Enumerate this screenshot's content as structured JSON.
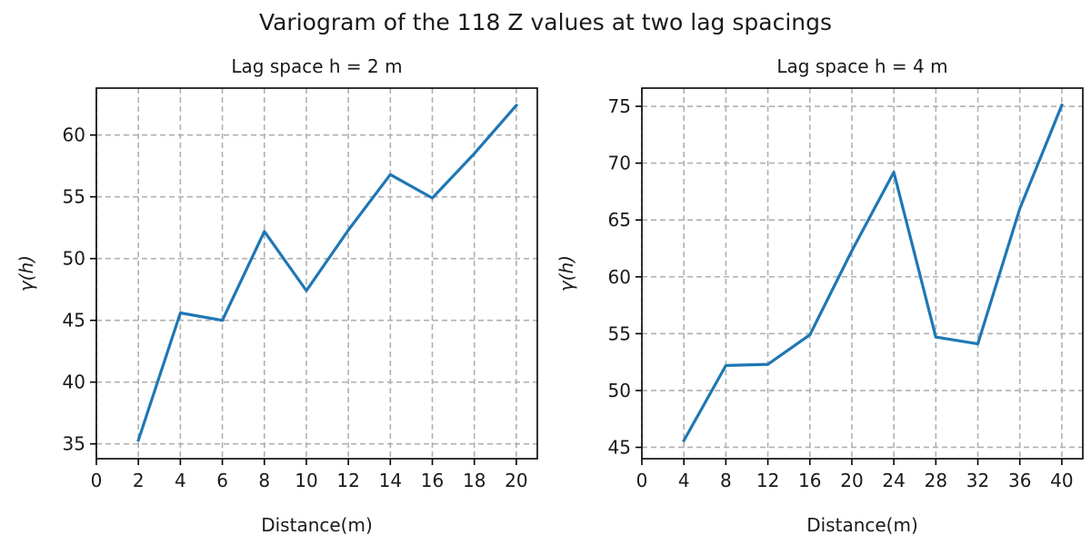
{
  "figure": {
    "title": "Variogram of the 118 Z values at two lag spacings"
  },
  "chart_data": [
    {
      "type": "line",
      "title": "Lag space h = 2 m",
      "xlabel": "Distance(m)",
      "ylabel": "γ(h)",
      "xlim": [
        0,
        21
      ],
      "ylim": [
        33.8,
        63.8
      ],
      "xticks": [
        0,
        2,
        4,
        6,
        8,
        10,
        12,
        14,
        16,
        18,
        20
      ],
      "yticks": [
        35,
        40,
        45,
        50,
        55,
        60
      ],
      "grid": true,
      "color": "#1f77b4",
      "series": [
        {
          "x": [
            2,
            4,
            6,
            8,
            10,
            12,
            14,
            16,
            18,
            20
          ],
          "y": [
            35.3,
            45.6,
            45.0,
            52.2,
            47.4,
            52.3,
            56.8,
            54.9,
            58.5,
            62.4
          ]
        }
      ]
    },
    {
      "type": "line",
      "title": "Lag space h = 4 m",
      "xlabel": "Distance(m)",
      "ylabel": "γ(h)",
      "xlim": [
        0,
        42
      ],
      "ylim": [
        44,
        76.6
      ],
      "xticks": [
        0,
        4,
        8,
        12,
        16,
        20,
        24,
        28,
        32,
        36,
        40
      ],
      "yticks": [
        45,
        50,
        55,
        60,
        65,
        70,
        75
      ],
      "grid": true,
      "color": "#1f77b4",
      "series": [
        {
          "x": [
            4,
            8,
            12,
            16,
            20,
            24,
            28,
            32,
            36,
            40
          ],
          "y": [
            45.6,
            52.2,
            52.3,
            54.9,
            62.3,
            69.2,
            54.7,
            54.1,
            66.0,
            75.1
          ]
        }
      ]
    }
  ]
}
